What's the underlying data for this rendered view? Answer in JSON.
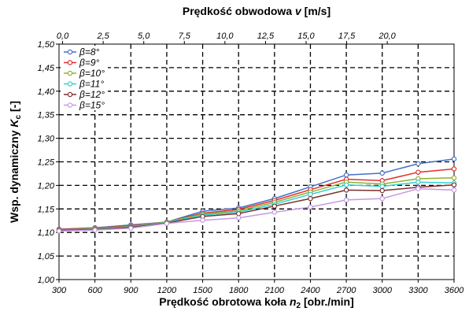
{
  "chart_data": {
    "type": "line",
    "x": [
      300,
      600,
      900,
      1200,
      1500,
      1800,
      2100,
      2400,
      2700,
      3000,
      3300,
      3600
    ],
    "x_ticks": [
      "300",
      "600",
      "900",
      "1200",
      "1500",
      "1800",
      "2100",
      "2400",
      "2700",
      "3000",
      "3300",
      "3600"
    ],
    "xlim": [
      300,
      3600
    ],
    "ylim": [
      1.0,
      1.5
    ],
    "y_ticks": [
      "1,00",
      "1,05",
      "1,10",
      "1,15",
      "1,20",
      "1,25",
      "1,30",
      "1,35",
      "1,40",
      "1,45",
      "1,50"
    ],
    "xlabel": {
      "main": "Prędkość obrotowa koła ",
      "var": "n",
      "sub": "2",
      "unit": " [obr./min]"
    },
    "ylabel": {
      "main": "Wsp. dynamiczny ",
      "var": "K",
      "sub": "c",
      "unit": " [-]"
    },
    "x2label": {
      "main": "Prędkość obwodowa ",
      "var": "v",
      "unit": " [m/s]"
    },
    "x2_ticks": [
      "0,0",
      "2,5",
      "5,0",
      "7,5",
      "10,0",
      "12,5",
      "15,0",
      "17,5",
      "20,0"
    ],
    "x2_positions": [
      330,
      669,
      1008,
      1347,
      1686,
      2025,
      2364,
      2703,
      3042
    ],
    "grid": true,
    "legend_position": "top-left",
    "series": [
      {
        "name": "β=8°",
        "color": "#4472c4",
        "values": [
          1.107,
          1.11,
          1.116,
          1.122,
          1.145,
          1.152,
          1.172,
          1.197,
          1.222,
          1.226,
          1.246,
          1.256
        ]
      },
      {
        "name": "β=9°",
        "color": "#e03030",
        "values": [
          1.106,
          1.109,
          1.114,
          1.122,
          1.141,
          1.149,
          1.168,
          1.191,
          1.213,
          1.21,
          1.228,
          1.235
        ]
      },
      {
        "name": "β=10°",
        "color": "#8fb030",
        "values": [
          1.105,
          1.108,
          1.113,
          1.122,
          1.139,
          1.146,
          1.164,
          1.186,
          1.207,
          1.203,
          1.214,
          1.216
        ]
      },
      {
        "name": "β=11°",
        "color": "#30d0d0",
        "values": [
          1.104,
          1.107,
          1.112,
          1.121,
          1.137,
          1.143,
          1.16,
          1.181,
          1.201,
          1.198,
          1.207,
          1.205
        ]
      },
      {
        "name": "β=12°",
        "color": "#7b3030",
        "values": [
          1.104,
          1.106,
          1.111,
          1.12,
          1.134,
          1.14,
          1.156,
          1.172,
          1.19,
          1.189,
          1.196,
          1.201
        ]
      },
      {
        "name": "β=15°",
        "color": "#c59ae0",
        "values": [
          1.103,
          1.105,
          1.109,
          1.119,
          1.126,
          1.131,
          1.143,
          1.154,
          1.169,
          1.172,
          1.193,
          1.19
        ]
      }
    ]
  }
}
